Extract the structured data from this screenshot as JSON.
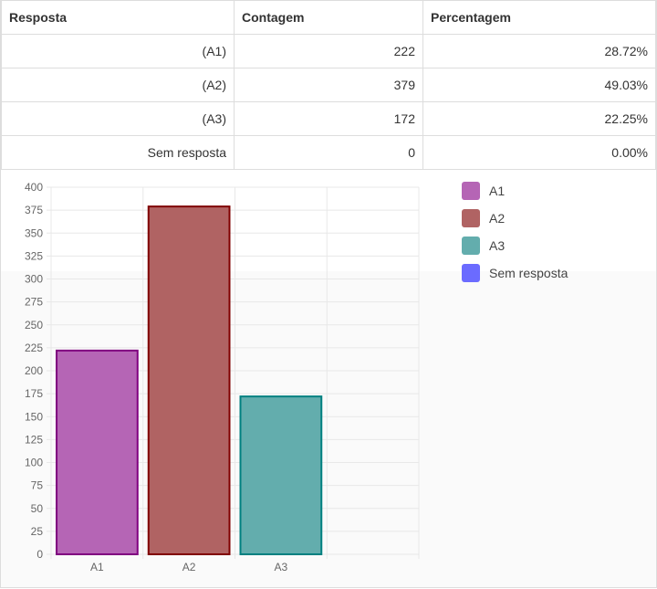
{
  "table": {
    "headers": [
      "Resposta",
      "Contagem",
      "Percentagem"
    ],
    "rows": [
      {
        "answer": "(A1)",
        "count": "222",
        "percent": "28.72%"
      },
      {
        "answer": "(A2)",
        "count": "379",
        "percent": "49.03%"
      },
      {
        "answer": "(A3)",
        "count": "172",
        "percent": "22.25%"
      },
      {
        "answer": "Sem resposta",
        "count": "0",
        "percent": "0.00%"
      }
    ]
  },
  "chart_data": {
    "type": "bar",
    "categories": [
      "A1",
      "A2",
      "A3",
      ""
    ],
    "values": [
      222,
      379,
      172,
      0
    ],
    "legend": [
      "A1",
      "A2",
      "A3",
      "Sem resposta"
    ],
    "colors": [
      "#b565b5",
      "#b06363",
      "#63adad",
      "#6b6bff"
    ],
    "border_colors": [
      "#800080",
      "#800000",
      "#008080",
      "#0000ff"
    ],
    "ylim": [
      0,
      400
    ],
    "yticks": [
      0,
      25,
      50,
      75,
      100,
      125,
      150,
      175,
      200,
      225,
      250,
      275,
      300,
      325,
      350,
      375,
      400
    ],
    "grid": true,
    "legend_position": "right"
  }
}
